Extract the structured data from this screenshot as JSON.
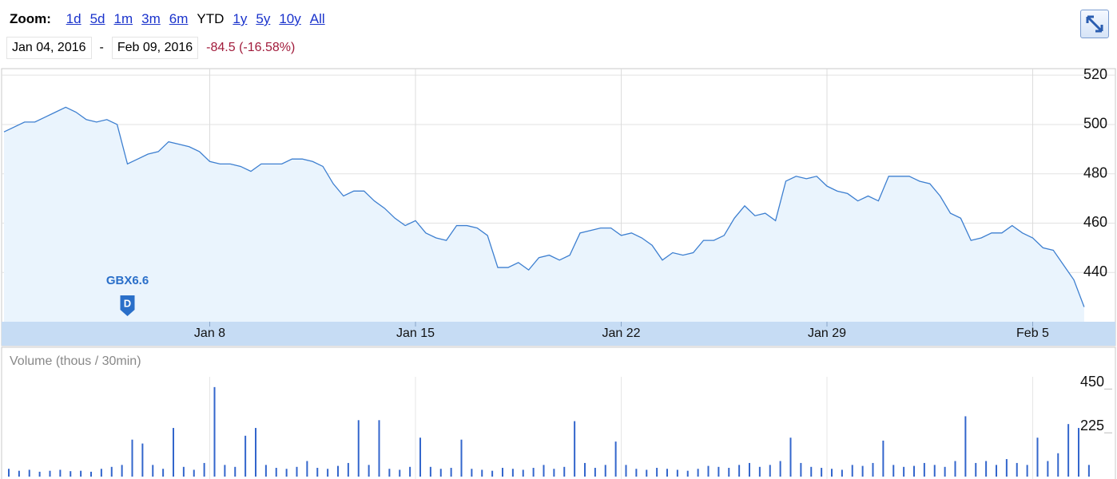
{
  "toolbar": {
    "zoom_label": "Zoom:",
    "zoom_options": [
      {
        "label": "1d",
        "link": true
      },
      {
        "label": "5d",
        "link": true
      },
      {
        "label": "1m",
        "link": true
      },
      {
        "label": "3m",
        "link": true
      },
      {
        "label": "6m",
        "link": true
      },
      {
        "label": "YTD",
        "link": false
      },
      {
        "label": "1y",
        "link": true
      },
      {
        "label": "5y",
        "link": true
      },
      {
        "label": "10y",
        "link": true
      },
      {
        "label": "All",
        "link": true
      }
    ]
  },
  "range": {
    "start": "Jan 04, 2016",
    "separator": "-",
    "end": "Feb 09, 2016",
    "change": "-84.5 (-16.58%)"
  },
  "chart_data": [
    {
      "type": "line",
      "color": "#3d7fd0",
      "area_color": "#eaf4fd",
      "grid": true,
      "categories": [
        null,
        null,
        null,
        null,
        null,
        null,
        null,
        null,
        null,
        null,
        null,
        null,
        null,
        null,
        null,
        null,
        null,
        null,
        null,
        null,
        "Jan 8",
        null,
        null,
        null,
        null,
        null,
        null,
        null,
        null,
        null,
        null,
        null,
        null,
        null,
        null,
        null,
        null,
        null,
        null,
        null,
        "Jan 15",
        null,
        null,
        null,
        null,
        null,
        null,
        null,
        null,
        null,
        null,
        null,
        null,
        null,
        null,
        null,
        null,
        null,
        null,
        null,
        "Jan 22",
        null,
        null,
        null,
        null,
        null,
        null,
        null,
        null,
        null,
        null,
        null,
        null,
        null,
        null,
        null,
        null,
        null,
        null,
        null,
        "Jan 29",
        null,
        null,
        null,
        null,
        null,
        null,
        null,
        null,
        null,
        null,
        null,
        null,
        null,
        null,
        null,
        null,
        null,
        null,
        null,
        "Feb 5",
        null,
        null,
        null,
        null,
        null
      ],
      "values": [
        497,
        499,
        501,
        501,
        503,
        505,
        507,
        505,
        502,
        501,
        502,
        500,
        484,
        486,
        488,
        489,
        493,
        492,
        491,
        489,
        485,
        484,
        484,
        483,
        481,
        484,
        484,
        484,
        486,
        486,
        485,
        483,
        476,
        471,
        473,
        473,
        469,
        466,
        462,
        459,
        461,
        456,
        454,
        453,
        459,
        459,
        458,
        455,
        442,
        442,
        444,
        441,
        446,
        447,
        445,
        447,
        456,
        457,
        458,
        458,
        455,
        456,
        454,
        451,
        445,
        448,
        447,
        448,
        453,
        453,
        455,
        462,
        467,
        463,
        464,
        461,
        477,
        479,
        478,
        479,
        475,
        473,
        472,
        469,
        471,
        469,
        479,
        479,
        479,
        477,
        476,
        471,
        464,
        462,
        453,
        454,
        456,
        456,
        459,
        456,
        454,
        450,
        449,
        443,
        437,
        426
      ],
      "ylim": [
        420,
        522
      ],
      "yticks": [
        440,
        460,
        480,
        500,
        520
      ],
      "annotations": [
        {
          "label": "GBX6.6",
          "flag": "D",
          "category_index": 12
        }
      ]
    },
    {
      "type": "bar",
      "title": "Volume (thous / 30min)",
      "color": "#3366cc",
      "values": [
        40,
        30,
        35,
        25,
        30,
        35,
        28,
        30,
        25,
        40,
        50,
        60,
        190,
        170,
        60,
        40,
        250,
        50,
        35,
        70,
        460,
        60,
        50,
        210,
        250,
        60,
        45,
        40,
        50,
        80,
        45,
        40,
        55,
        70,
        290,
        60,
        290,
        40,
        35,
        50,
        200,
        50,
        40,
        45,
        190,
        40,
        35,
        30,
        45,
        40,
        35,
        45,
        60,
        40,
        50,
        285,
        70,
        45,
        60,
        180,
        60,
        40,
        35,
        45,
        40,
        35,
        30,
        40,
        55,
        50,
        45,
        60,
        70,
        50,
        60,
        80,
        200,
        70,
        50,
        45,
        40,
        35,
        60,
        55,
        70,
        185,
        60,
        50,
        55,
        70,
        60,
        50,
        80,
        310,
        70,
        80,
        60,
        90,
        70,
        60,
        200,
        80,
        120,
        270,
        250,
        60
      ],
      "ylim": [
        0,
        480
      ],
      "yticks": [
        225,
        450
      ]
    }
  ]
}
